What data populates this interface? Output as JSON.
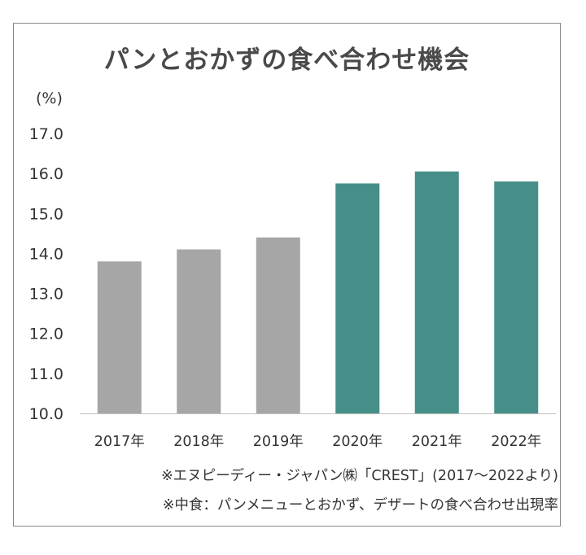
{
  "chart_data": {
    "type": "bar",
    "title": "パンとおかずの食べ合わせ機会",
    "ylabel": "(%)",
    "xlabel": "",
    "ylim": [
      10.0,
      17.0
    ],
    "yticks": [
      "10.0",
      "11.0",
      "12.0",
      "13.0",
      "14.0",
      "15.0",
      "16.0",
      "17.0"
    ],
    "categories": [
      "2017年",
      "2018年",
      "2019年",
      "2020年",
      "2021年",
      "2022年"
    ],
    "values": [
      13.8,
      14.1,
      14.4,
      15.75,
      16.05,
      15.8
    ],
    "bar_colors": [
      "#a6a6a6",
      "#a6a6a6",
      "#a6a6a6",
      "#468f88",
      "#468f88",
      "#468f88"
    ],
    "grid": false,
    "legend": "none"
  },
  "notes": {
    "source": "※エヌピーディー・ジャパン㈱「CREST」(2017〜2022より)",
    "definition": "※中食：パンメニューとおかず、デザートの食べ合わせ出現率"
  }
}
